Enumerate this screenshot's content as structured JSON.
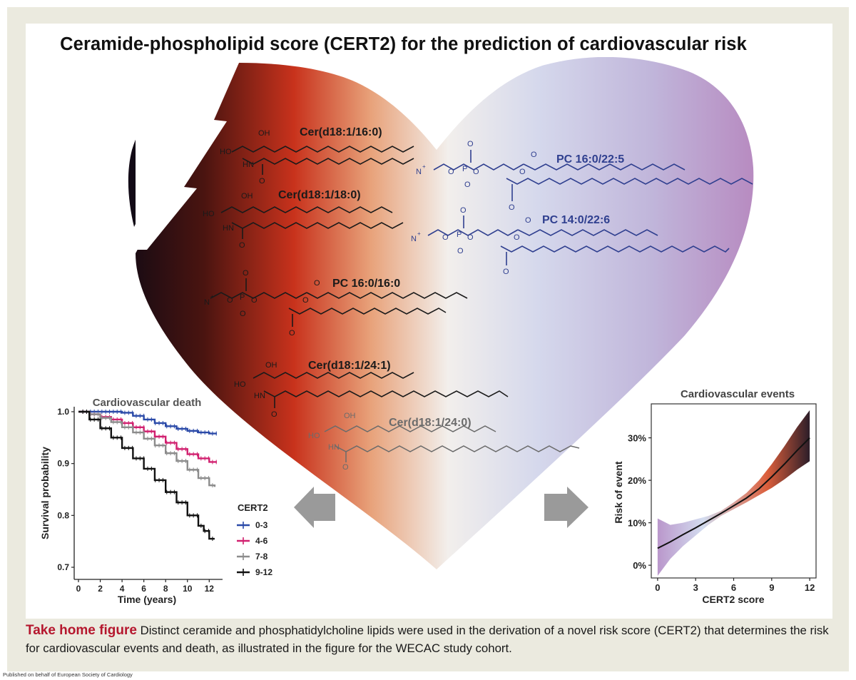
{
  "title": "Ceramide-phospholipid score (CERT2) for the prediction of cardiovascular risk",
  "lipids": [
    {
      "name": "Cer(d18:1/16:0)",
      "class": "ceramide",
      "color": "#1a1a1a",
      "labels": [
        "OH",
        "HO",
        "HN",
        "O"
      ]
    },
    {
      "name": "PC 16:0/22:5",
      "class": "phosphatidylcholine",
      "color": "#2f3f8f",
      "labels": [
        "N",
        "+",
        "O",
        "P",
        "O",
        "O",
        "O",
        "O",
        "O",
        "O"
      ]
    },
    {
      "name": "Cer(d18:1/18:0)",
      "class": "ceramide",
      "color": "#1a1a1a",
      "labels": [
        "OH",
        "HO",
        "HN",
        "O"
      ]
    },
    {
      "name": "PC 14:0/22:6",
      "class": "phosphatidylcholine",
      "color": "#2f3f8f",
      "labels": [
        "N",
        "+",
        "O",
        "P",
        "O",
        "O",
        "O",
        "O",
        "O",
        "O"
      ]
    },
    {
      "name": "PC 16:0/16:0",
      "class": "phosphatidylcholine",
      "color": "#1a1a1a",
      "labels": [
        "N",
        "+",
        "O",
        "P",
        "O",
        "O",
        "O",
        "O",
        "O",
        "O"
      ]
    },
    {
      "name": "Cer(d18:1/24:1)",
      "class": "ceramide",
      "color": "#1a1a1a",
      "labels": [
        "OH",
        "HO",
        "HN",
        "O"
      ]
    },
    {
      "name": "Cer(d18:1/24:0)",
      "class": "ceramide",
      "color": "#6b6b6b",
      "labels": [
        "OH",
        "HO",
        "HN",
        "O"
      ]
    }
  ],
  "chart_data": [
    {
      "type": "line",
      "title": "Cardiovascular death",
      "xlabel": "Time (years)",
      "ylabel": "Survival probability",
      "xlim": [
        0,
        12.7
      ],
      "ylim": [
        0.7,
        1.0
      ],
      "xticks": [
        "0",
        "2",
        "4",
        "6",
        "8",
        "10",
        "12"
      ],
      "yticks": [
        "0.7",
        "0.8",
        "0.9",
        "1.0"
      ],
      "legend_title": "CERT2",
      "legend_position": "right",
      "series": [
        {
          "name": "0-3",
          "color": "#2b4aa8",
          "x": [
            0,
            2,
            4,
            5,
            6,
            7,
            8,
            9,
            10,
            11,
            12,
            12.7
          ],
          "y": [
            1.0,
            1.0,
            0.998,
            0.992,
            0.985,
            0.978,
            0.972,
            0.967,
            0.963,
            0.96,
            0.958,
            0.958
          ]
        },
        {
          "name": "4-6",
          "color": "#d1206f",
          "x": [
            0,
            1,
            2,
            3,
            4,
            5,
            6,
            7,
            8,
            9,
            10,
            11,
            12,
            12.7
          ],
          "y": [
            1.0,
            0.995,
            0.99,
            0.985,
            0.978,
            0.97,
            0.962,
            0.952,
            0.94,
            0.928,
            0.918,
            0.91,
            0.903,
            0.903
          ]
        },
        {
          "name": "7-8",
          "color": "#8c8c8c",
          "x": [
            0,
            1,
            2,
            3,
            4,
            5,
            6,
            7,
            8,
            9,
            10,
            11,
            12,
            12.5
          ],
          "y": [
            1.0,
            0.995,
            0.988,
            0.98,
            0.97,
            0.96,
            0.948,
            0.935,
            0.92,
            0.905,
            0.888,
            0.872,
            0.858,
            0.855
          ]
        },
        {
          "name": "9-12",
          "color": "#111111",
          "x": [
            0,
            1,
            2,
            3,
            4,
            5,
            6,
            7,
            8,
            9,
            10,
            11,
            11.5,
            12,
            12.5
          ],
          "y": [
            1.0,
            0.985,
            0.968,
            0.95,
            0.93,
            0.91,
            0.89,
            0.868,
            0.845,
            0.825,
            0.8,
            0.78,
            0.77,
            0.755,
            0.755
          ]
        }
      ]
    },
    {
      "type": "area",
      "title": "Cardiovascular events",
      "xlabel": "CERT2 score",
      "ylabel": "Risk of event",
      "xlim": [
        -0.5,
        12.5
      ],
      "ylim": [
        -3,
        38
      ],
      "xticks": [
        "0",
        "3",
        "6",
        "9",
        "12"
      ],
      "yticks": [
        "0%",
        "10%",
        "20%",
        "30%"
      ],
      "x": [
        0,
        1,
        2,
        3,
        4,
        5,
        6,
        7,
        8,
        9,
        10,
        11,
        12
      ],
      "y": [
        4,
        5.5,
        7.2,
        8.8,
        10.5,
        12.2,
        14.0,
        15.8,
        18.0,
        20.8,
        23.8,
        27.0,
        30.0
      ],
      "lower": [
        -2.5,
        1.5,
        4.5,
        7.0,
        9.5,
        11.6,
        13.2,
        14.8,
        16.5,
        18.2,
        20.2,
        22.5,
        24.5
      ],
      "upper": [
        11,
        9.5,
        10.0,
        10.8,
        11.6,
        12.8,
        14.8,
        17.0,
        20.0,
        23.8,
        28.0,
        32.5,
        36.5
      ],
      "band_colors": [
        "#b48ec7",
        "#cfd9ee",
        "#d8502a",
        "#1a0a16"
      ]
    }
  ],
  "caption": {
    "lead": "Take home figure",
    "text": "Distinct ceramide and phosphatidylcholine lipids were used in the derivation of a novel risk score (CERT2) that determines the risk for cardiovascular events and death, as illustrated in the figure for the WECAC study cohort."
  },
  "publisher": "Published on behalf of European Society of Cardiology"
}
